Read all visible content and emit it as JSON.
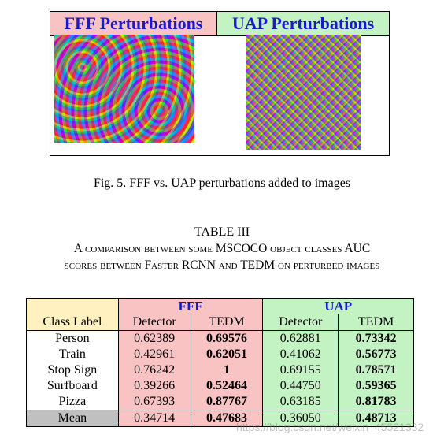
{
  "figure": {
    "fff_label": "FFF Perturbations",
    "uap_label": "UAP Perturbations",
    "caption": "Fig. 5.  FFF vs. UAP perturbations added to images"
  },
  "table": {
    "number": "TABLE III",
    "title_line1": "A comparison between some MSCOCO object classes AUC",
    "title_line2": "scores between Faster RCNN and TEDM on perturbed images",
    "class_label_header": "Class Label",
    "group_fff": "FFF",
    "group_uap": "UAP",
    "sub_detector": "Detector",
    "sub_tedm": "TEDM",
    "rows": [
      {
        "label": "Person",
        "fff_det": "0.62389",
        "fff_tedm": "0.69576",
        "uap_det": "0.62881",
        "uap_tedm": "0.73342"
      },
      {
        "label": "Train",
        "fff_det": "0.42961",
        "fff_tedm": "0.62051",
        "uap_det": "0.41062",
        "uap_tedm": "0.56773"
      },
      {
        "label": "Stop Sign",
        "fff_det": "0.76242",
        "fff_tedm": "1",
        "uap_det": "0.69155",
        "uap_tedm": "0.78571"
      },
      {
        "label": "Surfboard",
        "fff_det": "0.39266",
        "fff_tedm": "0.52464",
        "uap_det": "0.44750",
        "uap_tedm": "0.59365"
      },
      {
        "label": "Pizza",
        "fff_det": "0.67393",
        "fff_tedm": "0.87767",
        "uap_det": "0.63185",
        "uap_tedm": "0.81783"
      },
      {
        "label": "Mean",
        "fff_det": "0.34714",
        "fff_tedm": "0.47683",
        "uap_det": "0.36050",
        "uap_tedm": "0.48713"
      }
    ]
  },
  "watermark": "https://blog.csdn.net/weixin_45521332",
  "colors": {
    "fff_bg": "#f9c3c3",
    "uap_bg": "#c3f2c3",
    "class_bg": "#fff2c0",
    "header_text": "#1a1acc",
    "mean_bg": "#c0c0c0"
  }
}
